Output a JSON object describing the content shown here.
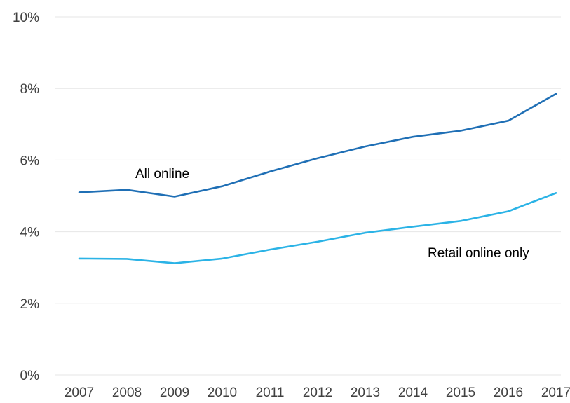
{
  "chart_data": {
    "type": "line",
    "x": [
      "2007",
      "2008",
      "2009",
      "2010",
      "2011",
      "2012",
      "2013",
      "2014",
      "2015",
      "2016",
      "2017"
    ],
    "y_ticks": [
      "0%",
      "2%",
      "4%",
      "6%",
      "8%",
      "10%"
    ],
    "ylim": [
      0,
      10
    ],
    "grid": true,
    "series": [
      {
        "name": "All online",
        "color": "#1f6fb5",
        "values": [
          5.1,
          5.17,
          4.98,
          5.27,
          5.68,
          6.05,
          6.38,
          6.65,
          6.82,
          7.1,
          7.85
        ]
      },
      {
        "name": "Retail online only",
        "color": "#2bb3e6",
        "values": [
          3.25,
          3.24,
          3.12,
          3.25,
          3.5,
          3.72,
          3.97,
          4.14,
          4.3,
          4.57,
          5.08
        ]
      }
    ]
  }
}
